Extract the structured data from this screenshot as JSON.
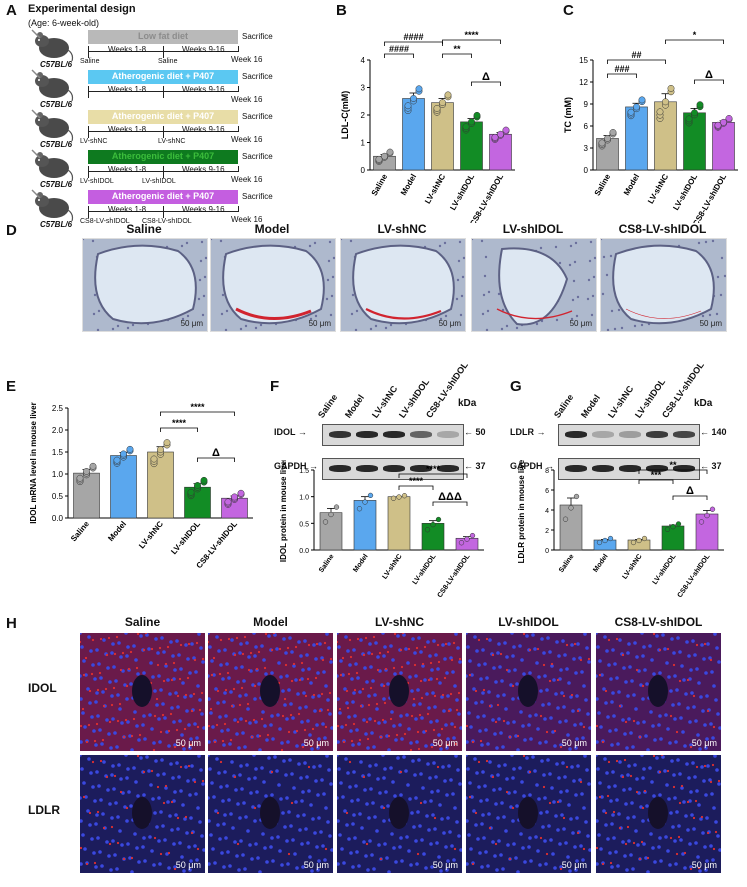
{
  "panelA": {
    "letter": "A",
    "title": "Experimental design",
    "subtitle": "(Age: 6-week-old)",
    "groups": [
      {
        "strain": "C57BL/6",
        "diet": "Low fat diet",
        "color": "#b9b9b9",
        "textColor": "#8c8c8c",
        "weeks1": "Weeks 1-8",
        "weeks2": "Weeks 9-16",
        "inj1": "Saline",
        "inj2": "Saline",
        "end": "Week 16",
        "sac": "Sacrifice"
      },
      {
        "strain": "C57BL/6",
        "diet": "Atherogenic diet + P407",
        "color": "#5bc8f2",
        "textColor": "#ffffff",
        "weeks1": "Weeks 1-8",
        "weeks2": "Weeks 9-16",
        "inj1": "",
        "inj2": "",
        "end": "Week 16",
        "sac": "Sacrifice"
      },
      {
        "strain": "C57BL/6",
        "diet": "Atherogenic diet + P407",
        "color": "#e8dda7",
        "textColor": "#ffffff",
        "weeks1": "Weeks 1-8",
        "weeks2": "Weeks 9-16",
        "inj1": "LV-shNC",
        "inj2": "LV-shNC",
        "end": "Week 16",
        "sac": "Sacrifice"
      },
      {
        "strain": "C57BL/6",
        "diet": "Atherogenic diet + P407",
        "color": "#0e7a1f",
        "textColor": "#3bbd3b",
        "weeks1": "Weeks 1-8",
        "weeks2": "Weeks 9-16",
        "inj1": "LV-shIDOL",
        "inj2": "LV-shIDOL",
        "end": "Week 16",
        "sac": "Sacrifice"
      },
      {
        "strain": "C57BL/6",
        "diet": "Atherogenic diet + P407",
        "color": "#c45ee0",
        "textColor": "#ffffff",
        "weeks1": "Weeks 1-8",
        "weeks2": "Weeks 9-16",
        "inj1": "CS8-LV-shIDOL",
        "inj2": "CS8-LV-shIDOL",
        "end": "Week 16",
        "sac": "Sacrifice"
      }
    ]
  },
  "groupNames": [
    "Saline",
    "Model",
    "LV-shNC",
    "LV-shIDOL",
    "CS8-LV-shIDOL"
  ],
  "groupColors": [
    "#a6a6a6",
    "#5aa7ee",
    "#cfc088",
    "#128c25",
    "#c366e0"
  ],
  "panelB": {
    "letter": "B",
    "chart_data": {
      "type": "bar",
      "ylabel": "LDL-C(mM)",
      "ylim": [
        0,
        4
      ],
      "yticks": [
        0,
        1,
        2,
        3,
        4
      ],
      "categories": [
        "Saline",
        "Model",
        "LV-shNC",
        "LV-shIDOL",
        "CS8-LV-shIDOL"
      ],
      "values": [
        0.5,
        2.6,
        2.45,
        1.75,
        1.3
      ],
      "errors": [
        0.06,
        0.2,
        0.15,
        0.12,
        0.06
      ],
      "annotations": [
        "####",
        "####",
        "**",
        "****",
        "Δ"
      ]
    }
  },
  "panelC": {
    "letter": "C",
    "chart_data": {
      "type": "bar",
      "ylabel": "TC (mM)",
      "ylim": [
        0,
        15
      ],
      "yticks": [
        0,
        3,
        6,
        9,
        12,
        15
      ],
      "categories": [
        "Saline",
        "Model",
        "LV-shNC",
        "LV-shIDOL",
        "CS8-LV-shIDOL"
      ],
      "values": [
        4.3,
        8.6,
        9.3,
        7.8,
        6.5
      ],
      "errors": [
        0.4,
        0.5,
        1.1,
        0.6,
        0.2
      ],
      "annotations": [
        "###",
        "##",
        "*",
        "Δ"
      ]
    }
  },
  "panelD": {
    "letter": "D",
    "labels": [
      "Saline",
      "Model",
      "LV-shNC",
      "LV-shIDOL",
      "CS8-LV-shIDOL"
    ],
    "scale": "50 μm"
  },
  "panelE": {
    "letter": "E",
    "chart_data": {
      "type": "bar",
      "ylabel": "IDOL mRNA level  in  mouse liver",
      "ylim": [
        0,
        2.5
      ],
      "yticks": [
        0.0,
        0.5,
        1.0,
        1.5,
        2.0,
        2.5
      ],
      "categories": [
        "Saline",
        "Model",
        "LV-shNC",
        "LV-shIDOL",
        "CS8-LV-shIDOL"
      ],
      "values": [
        1.02,
        1.42,
        1.5,
        0.7,
        0.45
      ],
      "errors": [
        0.08,
        0.07,
        0.12,
        0.08,
        0.05
      ],
      "annotations": [
        "****",
        "****",
        "Δ"
      ]
    }
  },
  "panelF": {
    "letter": "F",
    "lanes": [
      "Saline",
      "Model",
      "LV-shNC",
      "LV-shIDOL",
      "CS8-LV-shIDOL"
    ],
    "kda": "kDa",
    "blots": [
      {
        "name": "IDOL",
        "kda": "50"
      },
      {
        "name": "GAPDH",
        "kda": "37"
      }
    ],
    "chart_data": {
      "type": "bar",
      "ylabel": "IDOL protein  in  mouse liver",
      "ylim": [
        0,
        1.5
      ],
      "yticks": [
        0.0,
        0.5,
        1.0,
        1.5
      ],
      "categories": [
        "Saline",
        "Model",
        "LV-shNC",
        "LV-shIDOL",
        "CS8-LV-shIDOL"
      ],
      "values": [
        0.7,
        0.93,
        1.0,
        0.5,
        0.22
      ],
      "errors": [
        0.08,
        0.07,
        0.0,
        0.05,
        0.03
      ],
      "annotations": [
        "****",
        "****",
        "ΔΔΔ"
      ]
    }
  },
  "panelG": {
    "letter": "G",
    "lanes": [
      "Saline",
      "Model",
      "LV-shNC",
      "LV-shIDOL",
      "CS8-LV-shIDOL"
    ],
    "kda": "kDa",
    "blots": [
      {
        "name": "LDLR",
        "kda": "140"
      },
      {
        "name": "GAPDH",
        "kda": "37"
      }
    ],
    "chart_data": {
      "type": "bar",
      "ylabel": "LDLR protein  in  mouse liver",
      "ylim": [
        0,
        8
      ],
      "yticks": [
        0,
        2,
        4,
        6,
        8
      ],
      "categories": [
        "Saline",
        "Model",
        "LV-shNC",
        "LV-shIDOL",
        "CS8-LV-shIDOL"
      ],
      "values": [
        4.5,
        1.0,
        1.0,
        2.4,
        3.6
      ],
      "errors": [
        0.7,
        0.05,
        0.05,
        0.1,
        0.35
      ],
      "annotations": [
        "**",
        "***",
        "Δ"
      ]
    }
  },
  "panelH": {
    "letter": "H",
    "labels": [
      "Saline",
      "Model",
      "LV-shNC",
      "LV-shIDOL",
      "CS8-LV-shIDOL"
    ],
    "rows": [
      "IDOL",
      "LDLR"
    ],
    "scale": "50 μm"
  }
}
